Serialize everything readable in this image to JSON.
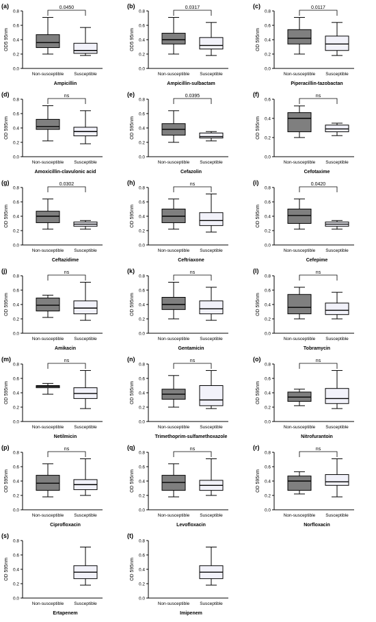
{
  "figure": {
    "colors": {
      "non_susceptible_box": "#7f7f7f",
      "susceptible_box": "#f2f2fa",
      "axis": "#000000"
    }
  },
  "chart_data": [
    {
      "type": "box",
      "letter": "(a)",
      "title": "Ampicillin",
      "ylabel": "OD5 95nm",
      "ylim": [
        0,
        0.8
      ],
      "yticks": [
        "0.0",
        "0.2",
        "0.4",
        "0.6",
        "0.8"
      ],
      "categories": [
        "Non-susceptible",
        "Susceptible"
      ],
      "boxes": [
        {
          "min": 0.2,
          "q1": 0.29,
          "median": 0.36,
          "q3": 0.47,
          "max": 0.71
        },
        {
          "min": 0.18,
          "q1": 0.21,
          "median": 0.25,
          "q3": 0.35,
          "max": 0.57
        }
      ],
      "comparison": "0.0450"
    },
    {
      "type": "box",
      "letter": "(b)",
      "title": "Ampicillin-sulbactam",
      "ylabel": "OD5 95nm",
      "ylim": [
        0,
        0.8
      ],
      "yticks": [
        "0.0",
        "0.2",
        "0.4",
        "0.6",
        "0.8"
      ],
      "categories": [
        "Non-susceptible",
        "Susceptible"
      ],
      "boxes": [
        {
          "min": 0.2,
          "q1": 0.34,
          "median": 0.4,
          "q3": 0.49,
          "max": 0.71
        },
        {
          "min": 0.18,
          "q1": 0.27,
          "median": 0.32,
          "q3": 0.43,
          "max": 0.64
        }
      ],
      "comparison": "0.0317"
    },
    {
      "type": "box",
      "letter": "(c)",
      "title": "Piperacillin-tazobactan",
      "ylabel": "OD 595nm",
      "ylim": [
        0,
        0.8
      ],
      "yticks": [
        "0.0",
        "0.2",
        "0.4",
        "0.6",
        "0.8"
      ],
      "categories": [
        "Non-susceptible",
        "Susceptible"
      ],
      "boxes": [
        {
          "min": 0.2,
          "q1": 0.34,
          "median": 0.42,
          "q3": 0.54,
          "max": 0.71
        },
        {
          "min": 0.18,
          "q1": 0.25,
          "median": 0.34,
          "q3": 0.45,
          "max": 0.64
        }
      ],
      "comparison": "0.0117"
    },
    {
      "type": "box",
      "letter": "(d)",
      "title": "Amoxicillin-clavulonic acid",
      "ylabel": "OD 595nm",
      "ylim": [
        0,
        0.8
      ],
      "yticks": [
        "0.0",
        "0.2",
        "0.4",
        "0.6",
        "0.8"
      ],
      "categories": [
        "Non-susceptible",
        "Susceptible"
      ],
      "boxes": [
        {
          "min": 0.22,
          "q1": 0.38,
          "median": 0.42,
          "q3": 0.52,
          "max": 0.71
        },
        {
          "min": 0.18,
          "q1": 0.29,
          "median": 0.35,
          "q3": 0.41,
          "max": 0.64
        }
      ],
      "comparison": "ns"
    },
    {
      "type": "box",
      "letter": "(e)",
      "title": "Cefazolin",
      "ylabel": "OD 595nm",
      "ylim": [
        0,
        0.8
      ],
      "yticks": [
        "0.0",
        "0.2",
        "0.4",
        "0.6",
        "0.8"
      ],
      "categories": [
        "Non-susceptible",
        "Susceptible"
      ],
      "boxes": [
        {
          "min": 0.2,
          "q1": 0.3,
          "median": 0.38,
          "q3": 0.46,
          "max": 0.64
        },
        {
          "min": 0.22,
          "q1": 0.26,
          "median": 0.28,
          "q3": 0.33,
          "max": 0.35
        }
      ],
      "comparison": "0.0395"
    },
    {
      "type": "box",
      "letter": "(f)",
      "title": "Cefotaxime",
      "ylabel": "OD 595nm",
      "ylim": [
        0,
        0.6
      ],
      "yticks": [
        "0.0",
        "0.2",
        "0.4",
        "0.6"
      ],
      "categories": [
        "Non-susceptible",
        "Susceptible"
      ],
      "boxes": [
        {
          "min": 0.2,
          "q1": 0.26,
          "median": 0.4,
          "q3": 0.46,
          "max": 0.53
        },
        {
          "min": 0.22,
          "q1": 0.26,
          "median": 0.29,
          "q3": 0.33,
          "max": 0.35
        }
      ],
      "comparison": "ns"
    },
    {
      "type": "box",
      "letter": "(g)",
      "title": "Ceftazidime",
      "ylabel": "OD 595nm",
      "ylim": [
        0,
        0.8
      ],
      "yticks": [
        "0.0",
        "0.2",
        "0.4",
        "0.6",
        "0.8"
      ],
      "categories": [
        "Non-susceptible",
        "Susceptible"
      ],
      "boxes": [
        {
          "min": 0.22,
          "q1": 0.31,
          "median": 0.4,
          "q3": 0.47,
          "max": 0.64
        },
        {
          "min": 0.22,
          "q1": 0.26,
          "median": 0.29,
          "q3": 0.32,
          "max": 0.34
        }
      ],
      "comparison": "0.0302"
    },
    {
      "type": "box",
      "letter": "(h)",
      "title": "Ceftriaxone",
      "ylabel": "OD 595nm",
      "ylim": [
        0,
        0.8
      ],
      "yticks": [
        "0.0",
        "0.2",
        "0.4",
        "0.6",
        "0.8"
      ],
      "categories": [
        "Non-susceptible",
        "Susceptible"
      ],
      "boxes": [
        {
          "min": 0.22,
          "q1": 0.31,
          "median": 0.4,
          "q3": 0.5,
          "max": 0.64
        },
        {
          "min": 0.18,
          "q1": 0.27,
          "median": 0.34,
          "q3": 0.45,
          "max": 0.71
        }
      ],
      "comparison": "ns"
    },
    {
      "type": "box",
      "letter": "(i)",
      "title": "Cefepime",
      "ylabel": "OD 595nm",
      "ylim": [
        0,
        0.8
      ],
      "yticks": [
        "0.0",
        "0.2",
        "0.4",
        "0.6",
        "0.8"
      ],
      "categories": [
        "Non-susceptible",
        "Susceptible"
      ],
      "boxes": [
        {
          "min": 0.22,
          "q1": 0.3,
          "median": 0.41,
          "q3": 0.5,
          "max": 0.64
        },
        {
          "min": 0.22,
          "q1": 0.26,
          "median": 0.29,
          "q3": 0.32,
          "max": 0.34
        }
      ],
      "comparison": "0.0420"
    },
    {
      "type": "box",
      "letter": "(j)",
      "title": "Amikacin",
      "ylabel": "OD 595nm",
      "ylim": [
        0,
        0.8
      ],
      "yticks": [
        "0.0",
        "0.2",
        "0.4",
        "0.6",
        "0.8"
      ],
      "categories": [
        "Non-susceptible",
        "Susceptible"
      ],
      "boxes": [
        {
          "min": 0.22,
          "q1": 0.31,
          "median": 0.39,
          "q3": 0.49,
          "max": 0.53
        },
        {
          "min": 0.18,
          "q1": 0.27,
          "median": 0.35,
          "q3": 0.45,
          "max": 0.71
        }
      ],
      "comparison": "ns"
    },
    {
      "type": "box",
      "letter": "(k)",
      "title": "Gentamicin",
      "ylabel": "OD 595nm",
      "ylim": [
        0,
        0.8
      ],
      "yticks": [
        "0.0",
        "0.2",
        "0.4",
        "0.6",
        "0.8"
      ],
      "categories": [
        "Non-susceptible",
        "Susceptible"
      ],
      "boxes": [
        {
          "min": 0.2,
          "q1": 0.33,
          "median": 0.4,
          "q3": 0.5,
          "max": 0.71
        },
        {
          "min": 0.18,
          "q1": 0.27,
          "median": 0.34,
          "q3": 0.45,
          "max": 0.64
        }
      ],
      "comparison": "ns"
    },
    {
      "type": "box",
      "letter": "(l)",
      "title": "Tobramycin",
      "ylabel": "OD 595nm",
      "ylim": [
        0,
        0.8
      ],
      "yticks": [
        "0.0",
        "0.2",
        "0.4",
        "0.6",
        "0.8"
      ],
      "categories": [
        "Non-susceptible",
        "Susceptible"
      ],
      "boxes": [
        {
          "min": 0.2,
          "q1": 0.27,
          "median": 0.36,
          "q3": 0.54,
          "max": 0.64
        },
        {
          "min": 0.2,
          "q1": 0.26,
          "median": 0.32,
          "q3": 0.42,
          "max": 0.57
        }
      ],
      "comparison": "ns"
    },
    {
      "type": "box",
      "letter": "(m)",
      "title": "Netilmicin",
      "ylabel": "OD 595nm",
      "ylim": [
        0,
        0.8
      ],
      "yticks": [
        "0.0",
        "0.2",
        "0.4",
        "0.6",
        "0.8"
      ],
      "categories": [
        "Non-susceptible",
        "Susceptible"
      ],
      "boxes": [
        {
          "min": 0.38,
          "q1": 0.47,
          "median": 0.49,
          "q3": 0.5,
          "max": 0.53
        },
        {
          "min": 0.18,
          "q1": 0.32,
          "median": 0.39,
          "q3": 0.47,
          "max": 0.71
        }
      ],
      "comparison": "ns"
    },
    {
      "type": "box",
      "letter": "(n)",
      "title": "Trimethoprim-sulfamethoxazole",
      "ylabel": "OD 595nm",
      "ylim": [
        0,
        0.8
      ],
      "yticks": [
        "0.0",
        "0.2",
        "0.4",
        "0.6",
        "0.8"
      ],
      "categories": [
        "Non-susceptible",
        "Susceptible"
      ],
      "boxes": [
        {
          "min": 0.2,
          "q1": 0.31,
          "median": 0.38,
          "q3": 0.45,
          "max": 0.64
        },
        {
          "min": 0.18,
          "q1": 0.22,
          "median": 0.3,
          "q3": 0.5,
          "max": 0.71
        }
      ],
      "comparison": "ns"
    },
    {
      "type": "box",
      "letter": "(o)",
      "title": "Nitrofurantoin",
      "ylabel": "OD 595nm",
      "ylim": [
        0,
        0.8
      ],
      "yticks": [
        "0.0",
        "0.2",
        "0.4",
        "0.6",
        "0.8"
      ],
      "categories": [
        "Non-susceptible",
        "Susceptible"
      ],
      "boxes": [
        {
          "min": 0.22,
          "q1": 0.28,
          "median": 0.34,
          "q3": 0.41,
          "max": 0.45
        },
        {
          "min": 0.18,
          "q1": 0.25,
          "median": 0.32,
          "q3": 0.46,
          "max": 0.71
        }
      ],
      "comparison": "ns"
    },
    {
      "type": "box",
      "letter": "(p)",
      "title": "Ciprofloxacin",
      "ylabel": "OD 595nm",
      "ylim": [
        0,
        0.8
      ],
      "yticks": [
        "0.0",
        "0.2",
        "0.4",
        "0.6",
        "0.8"
      ],
      "categories": [
        "Non-susceptible",
        "Susceptible"
      ],
      "boxes": [
        {
          "min": 0.18,
          "q1": 0.27,
          "median": 0.37,
          "q3": 0.48,
          "max": 0.64
        },
        {
          "min": 0.2,
          "q1": 0.28,
          "median": 0.35,
          "q3": 0.42,
          "max": 0.71
        }
      ],
      "comparison": "ns"
    },
    {
      "type": "box",
      "letter": "(q)",
      "title": "Levofloxacin",
      "ylabel": "OD 595nm",
      "ylim": [
        0,
        0.8
      ],
      "yticks": [
        "0.0",
        "0.2",
        "0.4",
        "0.6",
        "0.8"
      ],
      "categories": [
        "Non-susceptible",
        "Susceptible"
      ],
      "boxes": [
        {
          "min": 0.18,
          "q1": 0.27,
          "median": 0.38,
          "q3": 0.48,
          "max": 0.64
        },
        {
          "min": 0.2,
          "q1": 0.27,
          "median": 0.34,
          "q3": 0.41,
          "max": 0.71
        }
      ],
      "comparison": "ns"
    },
    {
      "type": "box",
      "letter": "(r)",
      "title": "Norfloxacin",
      "ylabel": "OD 595nm",
      "ylim": [
        0,
        0.8
      ],
      "yticks": [
        "0.0",
        "0.2",
        "0.4",
        "0.6",
        "0.8"
      ],
      "categories": [
        "Non-susceptible",
        "Susceptible"
      ],
      "boxes": [
        {
          "min": 0.22,
          "q1": 0.27,
          "median": 0.4,
          "q3": 0.47,
          "max": 0.53
        },
        {
          "min": 0.18,
          "q1": 0.34,
          "median": 0.39,
          "q3": 0.49,
          "max": 0.71
        }
      ],
      "comparison": "ns"
    },
    {
      "type": "box",
      "letter": "(s)",
      "title": "Ertapenem",
      "ylabel": "OD 595nm",
      "ylim": [
        0,
        0.8
      ],
      "yticks": [
        "0.0",
        "0.2",
        "0.4",
        "0.6",
        "0.8"
      ],
      "categories": [
        "Non-susceptible",
        "Susceptible"
      ],
      "boxes": [
        null,
        {
          "min": 0.18,
          "q1": 0.27,
          "median": 0.36,
          "q3": 0.45,
          "max": 0.71
        }
      ],
      "comparison": ""
    },
    {
      "type": "box",
      "letter": "(t)",
      "title": "Imipenem",
      "ylabel": "OD 595nm",
      "ylim": [
        0,
        0.8
      ],
      "yticks": [
        "0.0",
        "0.2",
        "0.4",
        "0.6",
        "0.8"
      ],
      "categories": [
        "Non-susceptible",
        "Susceptible"
      ],
      "boxes": [
        null,
        {
          "min": 0.18,
          "q1": 0.27,
          "median": 0.36,
          "q3": 0.45,
          "max": 0.71
        }
      ],
      "comparison": ""
    }
  ]
}
